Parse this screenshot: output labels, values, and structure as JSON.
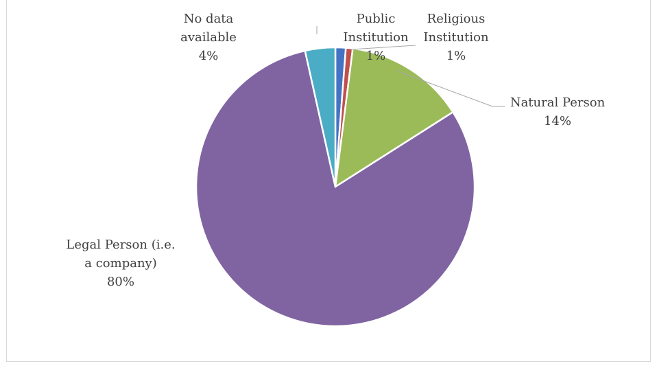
{
  "chart_data": {
    "type": "pie",
    "title": "",
    "start_angle_deg": 0,
    "direction": "clockwise",
    "slices": [
      {
        "label_lines": [
          "Public",
          "Institution"
        ],
        "percent_label": "1%",
        "value": 1.2,
        "color": "#4472c4"
      },
      {
        "label_lines": [
          "Religious",
          "Institution"
        ],
        "percent_label": "1%",
        "value": 0.8,
        "color": "#c0504d"
      },
      {
        "label_lines": [
          "Natural Person"
        ],
        "percent_label": "14%",
        "value": 14,
        "color": "#9bbb59"
      },
      {
        "label_lines": [
          "Legal Person (i.e.",
          "a company)"
        ],
        "percent_label": "80%",
        "value": 80.5,
        "color": "#8064a2"
      },
      {
        "label_lines": [
          "No data",
          "available"
        ],
        "percent_label": "4%",
        "value": 3.5,
        "color": "#4bacc6"
      }
    ],
    "leader_line_color": "#a6a6a6",
    "legend": "none",
    "data_labels": "category and percentage"
  }
}
